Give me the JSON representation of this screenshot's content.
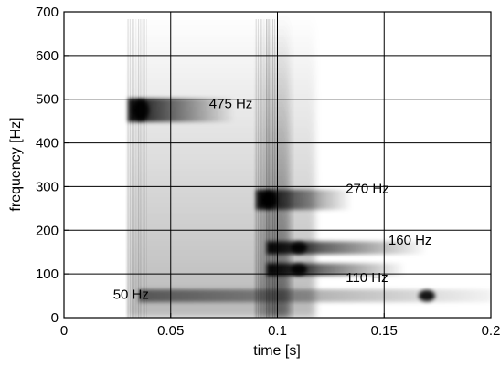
{
  "chart_data": {
    "type": "heatmap",
    "title": "",
    "xlabel": "time [s]",
    "ylabel": "frequency  [Hz]",
    "xlim": [
      0,
      0.2
    ],
    "ylim": [
      0,
      700
    ],
    "xticks": [
      0,
      0.05,
      0.1,
      0.15,
      0.2
    ],
    "xtick_labels": [
      "0",
      "0.05",
      "0.1",
      "0.15",
      "0.2"
    ],
    "yticks": [
      0,
      100,
      200,
      300,
      400,
      500,
      600,
      700
    ],
    "ytick_labels": [
      "0",
      "100",
      "200",
      "300",
      "400",
      "500",
      "600",
      "700"
    ],
    "grid": true,
    "colormap": "grayscale (white = 0, black = max)",
    "components": [
      {
        "label": "475 Hz",
        "freq": 475,
        "onset": 0.03,
        "end": 0.08,
        "peak_time": 0.036
      },
      {
        "label": "270 Hz",
        "freq": 270,
        "onset": 0.09,
        "end": 0.135,
        "peak_time": 0.096
      },
      {
        "label": "160 Hz",
        "freq": 160,
        "onset": 0.095,
        "end": 0.17,
        "peak_time": 0.11
      },
      {
        "label": "110 Hz",
        "freq": 110,
        "onset": 0.095,
        "end": 0.16,
        "peak_time": 0.11
      },
      {
        "label": "50 Hz",
        "freq": 50,
        "onset": 0.035,
        "end": 0.2,
        "peak_time": 0.17
      }
    ],
    "annotations": [
      {
        "text": "475 Hz",
        "x": 0.068,
        "y": 480
      },
      {
        "text": "270 Hz",
        "x": 0.132,
        "y": 285
      },
      {
        "text": "160 Hz",
        "x": 0.152,
        "y": 167
      },
      {
        "text": "110 Hz",
        "x": 0.132,
        "y": 82
      },
      {
        "text": "50 Hz",
        "x": 0.023,
        "y": 43
      }
    ]
  }
}
